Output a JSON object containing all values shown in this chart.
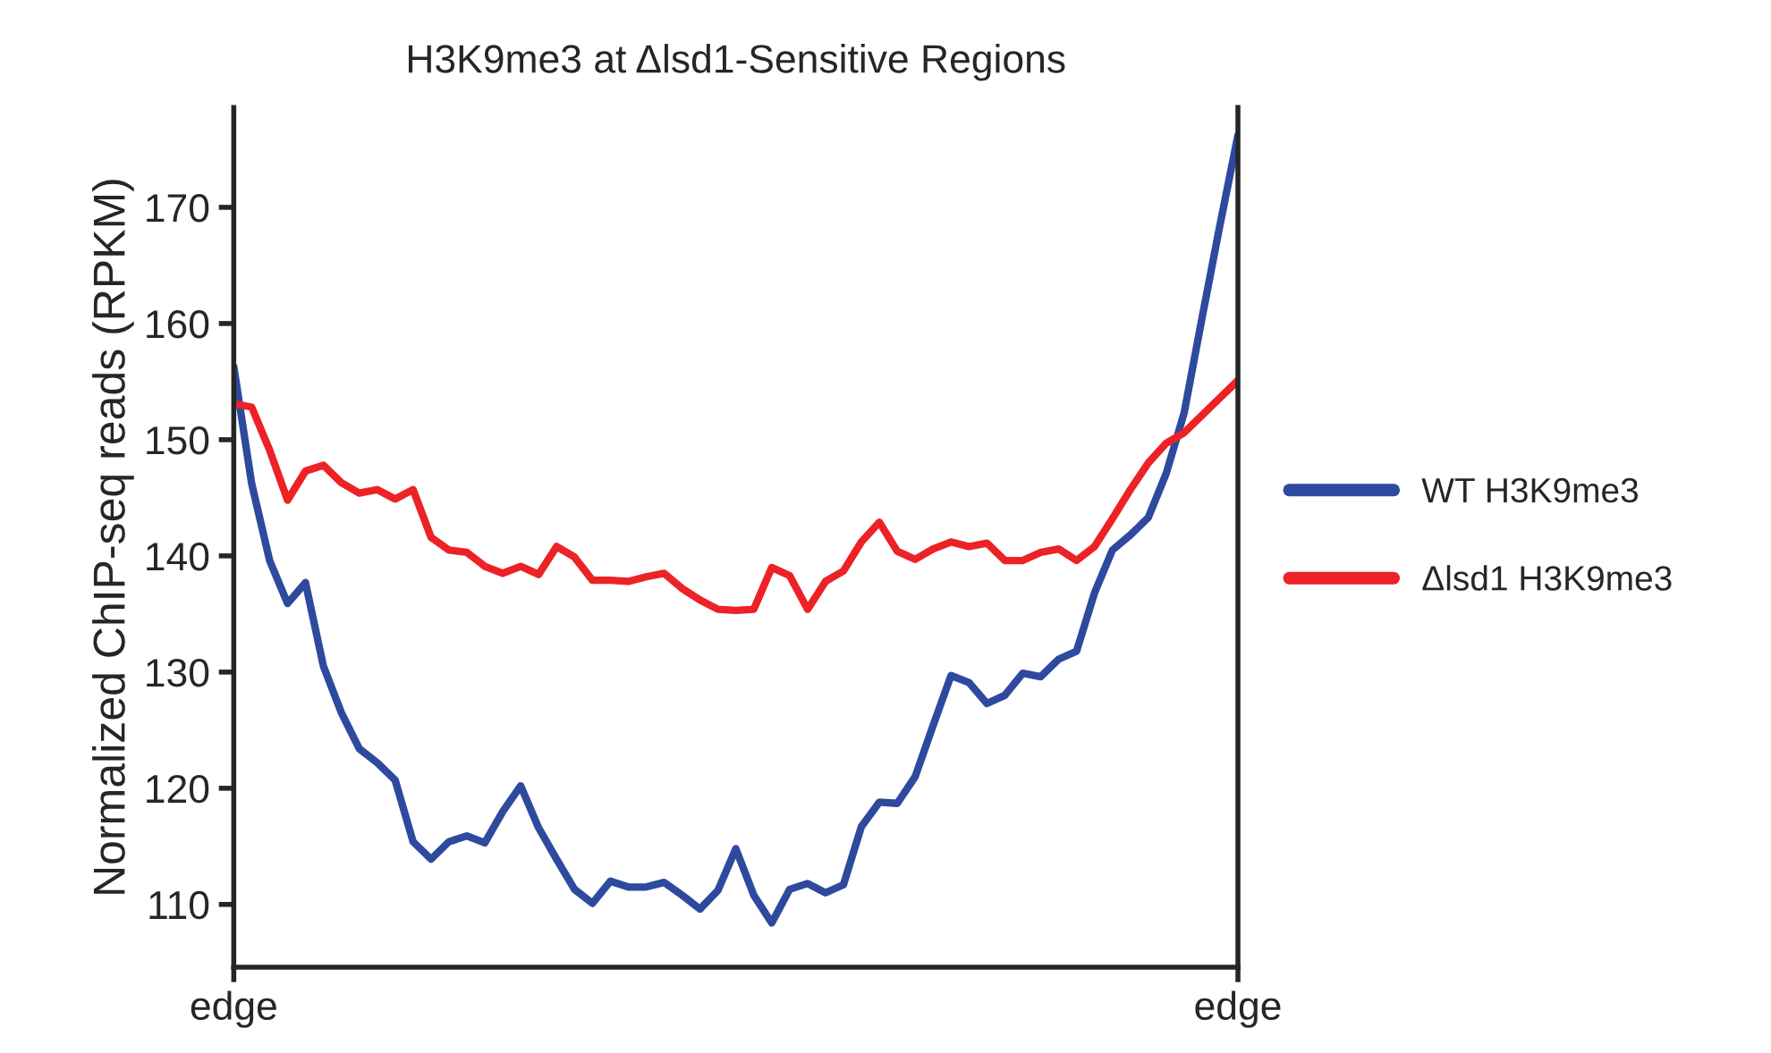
{
  "chart_data": {
    "type": "line",
    "title": "H3K9me3 at Δlsd1-Sensitive Regions",
    "ylabel": "Normalized ChIP-seq reads (RPKM)",
    "categories": [
      "edge",
      null,
      null,
      null,
      null,
      null,
      null,
      null,
      null,
      null,
      null,
      null,
      null,
      null,
      null,
      null,
      null,
      null,
      null,
      null,
      null,
      null,
      null,
      null,
      null,
      null,
      null,
      null,
      null,
      null,
      null,
      null,
      null,
      null,
      null,
      null,
      null,
      null,
      null,
      null,
      null,
      null,
      null,
      null,
      null,
      null,
      null,
      null,
      null,
      null,
      null,
      null,
      null,
      null,
      null,
      null,
      "edge"
    ],
    "ylim": [
      104.6,
      178.6
    ],
    "yticks": [
      110,
      120,
      130,
      140,
      150,
      160,
      170
    ],
    "grid": false,
    "legend": "right",
    "line_style": "solid",
    "marker": "none",
    "series": [
      {
        "name": "WT H3K9me3",
        "color": "#2e4a9e",
        "values": [
          156.3,
          146.2,
          139.6,
          135.9,
          137.7,
          130.5,
          126.5,
          123.4,
          122.2,
          120.7,
          115.4,
          113.9,
          115.4,
          115.9,
          115.3,
          118.0,
          120.2,
          116.6,
          113.9,
          111.3,
          110.1,
          112.0,
          111.5,
          111.5,
          111.9,
          110.8,
          109.6,
          111.2,
          114.8,
          110.8,
          108.4,
          111.3,
          111.8,
          111.0,
          111.7,
          116.7,
          118.8,
          118.7,
          121.0,
          125.4,
          129.7,
          129.1,
          127.3,
          128.0,
          129.9,
          129.6,
          131.1,
          131.8,
          136.8,
          140.5,
          141.8,
          143.3,
          147.1,
          152.3,
          160.5,
          168.5,
          176.2
        ]
      },
      {
        "name": "Δlsd1 H3K9me3",
        "color": "#ec2227",
        "values": [
          153.1,
          152.8,
          149.1,
          144.8,
          147.3,
          147.8,
          146.3,
          145.4,
          145.7,
          144.9,
          145.7,
          141.6,
          140.5,
          140.3,
          139.1,
          138.5,
          139.1,
          138.4,
          140.8,
          139.9,
          137.9,
          137.9,
          137.8,
          138.2,
          138.5,
          137.2,
          136.2,
          135.4,
          135.3,
          135.4,
          139.0,
          138.3,
          135.4,
          137.8,
          138.7,
          141.2,
          142.9,
          140.4,
          139.7,
          140.6,
          141.2,
          140.8,
          141.1,
          139.6,
          139.6,
          140.3,
          140.6,
          139.6,
          140.8,
          143.2,
          145.7,
          148.0,
          149.7,
          150.6,
          152.1,
          153.6,
          155.1
        ]
      }
    ]
  }
}
